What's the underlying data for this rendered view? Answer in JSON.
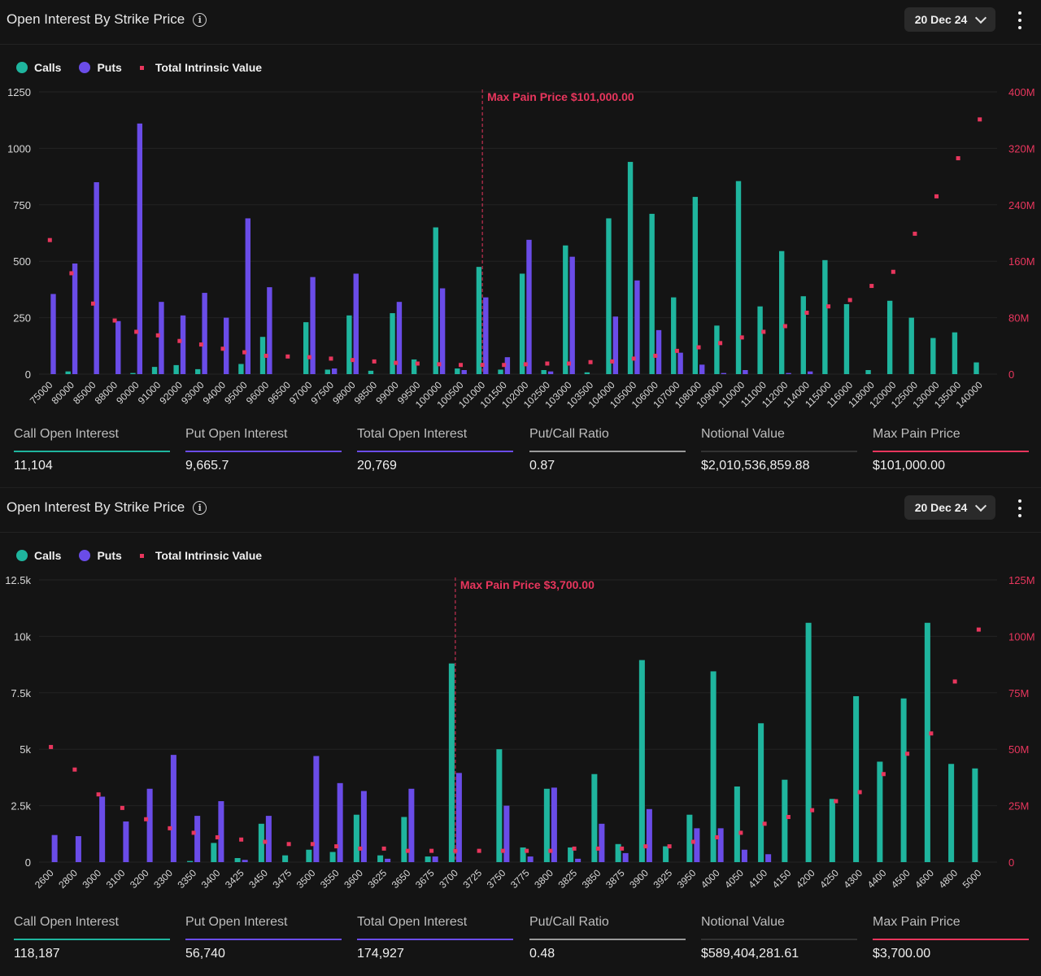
{
  "panels": [
    {
      "title": "Open Interest By Strike Price",
      "date": "20 Dec 24",
      "legend": {
        "calls": "Calls",
        "puts": "Puts",
        "intrinsic": "Total Intrinsic Value"
      },
      "stats": [
        {
          "label": "Call Open Interest",
          "value": "11,104",
          "color": "#1fb59e"
        },
        {
          "label": "Put Open Interest",
          "value": "9,665.7",
          "color": "#6a4ce8"
        },
        {
          "label": "Total Open Interest",
          "value": "20,769",
          "color": "#6a4ce8"
        },
        {
          "label": "Put/Call Ratio",
          "value": "0.87",
          "color": "#9a9a9a"
        },
        {
          "label": "Notional Value",
          "value": "$2,010,536,859.88",
          "color": "#333333"
        },
        {
          "label": "Max Pain Price",
          "value": "$101,000.00",
          "color": "#e8365d"
        }
      ],
      "chart_data": {
        "type": "bar",
        "title": "Open Interest By Strike Price",
        "categories": [
          "75000",
          "80000",
          "85000",
          "88000",
          "90000",
          "91000",
          "92000",
          "93000",
          "94000",
          "95000",
          "96000",
          "96500",
          "97000",
          "97500",
          "98000",
          "98500",
          "99000",
          "99500",
          "100000",
          "100500",
          "101000",
          "101500",
          "102000",
          "102500",
          "103000",
          "103500",
          "104000",
          "105000",
          "106000",
          "107000",
          "108000",
          "109000",
          "110000",
          "111000",
          "112000",
          "114000",
          "115000",
          "116000",
          "118000",
          "120000",
          "125000",
          "130000",
          "135000",
          "140000"
        ],
        "series": [
          {
            "name": "Calls",
            "axis": "left",
            "color": "#1fb59e",
            "values": [
              0,
              12,
              0,
              0,
              5,
              32,
              40,
              22,
              0,
              45,
              165,
              0,
              230,
              20,
              260,
              15,
              270,
              65,
              650,
              25,
              475,
              20,
              445,
              18,
              570,
              8,
              690,
              940,
              710,
              340,
              785,
              215,
              855,
              300,
              545,
              345,
              505,
              310,
              18,
              325,
              250,
              160,
              185,
              52
            ]
          },
          {
            "name": "Puts",
            "axis": "left",
            "color": "#6a4ce8",
            "values": [
              355,
              490,
              850,
              235,
              1110,
              320,
              260,
              360,
              250,
              690,
              385,
              0,
              430,
              25,
              445,
              0,
              320,
              0,
              380,
              18,
              340,
              75,
              595,
              12,
              520,
              0,
              255,
              415,
              195,
              95,
              42,
              5,
              18,
              0,
              5,
              12,
              0,
              0,
              0,
              0,
              0,
              0,
              0,
              0
            ]
          },
          {
            "name": "Total Intrinsic Value",
            "axis": "right",
            "color": "#e8365d",
            "values": [
              190,
              143,
              100,
              76,
              60,
              55,
              47,
              42,
              36,
              31,
              26,
              25,
              24,
              22,
              20,
              18,
              16,
              15,
              14,
              13,
              13,
              13,
              14,
              15,
              15,
              17,
              18,
              22,
              26,
              33,
              38,
              44,
              52,
              60,
              68,
              87,
              96,
              105,
              125,
              145,
              199,
              252,
              306,
              361
            ]
          }
        ],
        "ylim_left": [
          0,
          1250
        ],
        "yticks_left": [
          "0",
          "250",
          "500",
          "750",
          "1000",
          "1250"
        ],
        "yticks_left_values": [
          0,
          250,
          500,
          750,
          1000,
          1250
        ],
        "ylim_right": [
          0,
          400
        ],
        "yticks_right": [
          "0",
          "80M",
          "160M",
          "240M",
          "320M",
          "400M"
        ],
        "yticks_right_values": [
          0,
          80,
          160,
          240,
          320,
          400
        ],
        "marker": {
          "category": "101000",
          "label": "Max Pain Price $101,000.00"
        },
        "legend_position": "top-left"
      }
    },
    {
      "title": "Open Interest By Strike Price",
      "date": "20 Dec 24",
      "legend": {
        "calls": "Calls",
        "puts": "Puts",
        "intrinsic": "Total Intrinsic Value"
      },
      "stats": [
        {
          "label": "Call Open Interest",
          "value": "118,187",
          "color": "#1fb59e"
        },
        {
          "label": "Put Open Interest",
          "value": "56,740",
          "color": "#6a4ce8"
        },
        {
          "label": "Total Open Interest",
          "value": "174,927",
          "color": "#6a4ce8"
        },
        {
          "label": "Put/Call Ratio",
          "value": "0.48",
          "color": "#9a9a9a"
        },
        {
          "label": "Notional Value",
          "value": "$589,404,281.61",
          "color": "#333333"
        },
        {
          "label": "Max Pain Price",
          "value": "$3,700.00",
          "color": "#e8365d"
        }
      ],
      "chart_data": {
        "type": "bar",
        "title": "Open Interest By Strike Price",
        "categories": [
          "2600",
          "2800",
          "3000",
          "3100",
          "3200",
          "3300",
          "3350",
          "3400",
          "3425",
          "3450",
          "3475",
          "3500",
          "3550",
          "3600",
          "3625",
          "3650",
          "3675",
          "3700",
          "3725",
          "3750",
          "3775",
          "3800",
          "3825",
          "3850",
          "3875",
          "3900",
          "3925",
          "3950",
          "4000",
          "4050",
          "4100",
          "4150",
          "4200",
          "4250",
          "4300",
          "4400",
          "4500",
          "4600",
          "4800",
          "5000"
        ],
        "series": [
          {
            "name": "Calls",
            "axis": "left",
            "color": "#1fb59e",
            "values": [
              0,
              0,
              0,
              0,
              0,
              0,
              50,
              850,
              180,
              1700,
              300,
              550,
              450,
              2100,
              300,
              2000,
              250,
              8800,
              0,
              5000,
              650,
              3250,
              650,
              3900,
              800,
              8950,
              700,
              2100,
              8450,
              3350,
              6150,
              3650,
              10600,
              2800,
              7350,
              4450,
              7250,
              10600,
              4350,
              4150
            ]
          },
          {
            "name": "Puts",
            "axis": "left",
            "color": "#6a4ce8",
            "values": [
              1200,
              1150,
              2900,
              1800,
              3250,
              4750,
              2050,
              2700,
              100,
              2050,
              0,
              4700,
              3500,
              3150,
              150,
              3250,
              250,
              3950,
              0,
              2500,
              250,
              3300,
              150,
              1700,
              400,
              2350,
              0,
              1500,
              1500,
              550,
              350,
              0,
              0,
              0,
              0,
              0,
              0,
              0,
              0,
              0
            ]
          },
          {
            "name": "Total Intrinsic Value",
            "axis": "right",
            "color": "#e8365d",
            "values": [
              51,
              41,
              30,
              24,
              19,
              15,
              13,
              11,
              10,
              9,
              8,
              8,
              7,
              6,
              6,
              5,
              5,
              5,
              5,
              5,
              5,
              5,
              6,
              6,
              6,
              7,
              7,
              9,
              11,
              13,
              17,
              20,
              23,
              27,
              31,
              39,
              48,
              57,
              80,
              103
            ]
          }
        ],
        "ylim_left": [
          0,
          12500
        ],
        "yticks_left": [
          "0",
          "2.5k",
          "5k",
          "7.5k",
          "10k",
          "12.5k"
        ],
        "yticks_left_values": [
          0,
          2500,
          5000,
          7500,
          10000,
          12500
        ],
        "ylim_right": [
          0,
          125
        ],
        "yticks_right": [
          "0",
          "25M",
          "50M",
          "75M",
          "100M",
          "125M"
        ],
        "yticks_right_values": [
          0,
          25,
          50,
          75,
          100,
          125
        ],
        "marker": {
          "category": "3700",
          "label": "Max Pain Price $3,700.00"
        },
        "legend_position": "top-left"
      }
    }
  ]
}
